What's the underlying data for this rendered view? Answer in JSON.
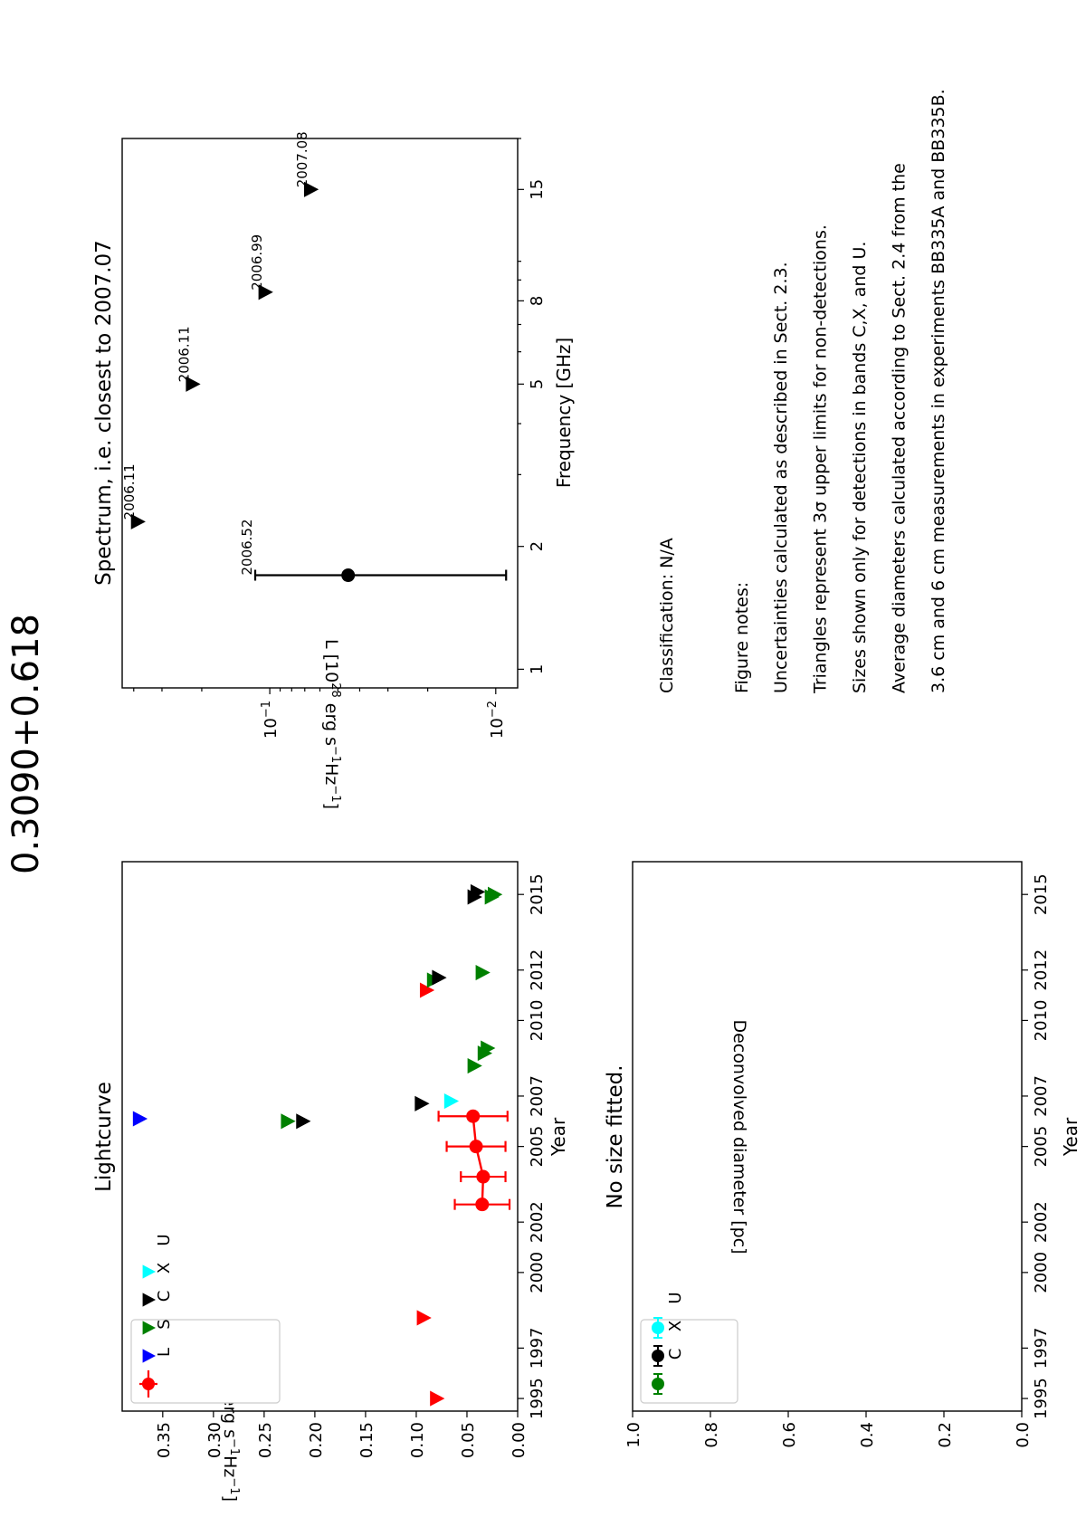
{
  "figure": {
    "title": "0.3090+0.618"
  },
  "colors": {
    "L": "#ff0000",
    "S": "#0000ff",
    "C": "#008000",
    "X": "#000000",
    "U": "#00ffff"
  },
  "chart_data": [
    {
      "id": "lightcurve",
      "type": "scatter",
      "title": "Lightcurve",
      "xlabel": "Year",
      "ylabel": "L [10^28 erg s^-1Hz^-1]",
      "xlim": [
        1994.5,
        2016.3
      ],
      "ylim": [
        0,
        0.39
      ],
      "x_ticks": [
        1995,
        1997,
        2000,
        2002,
        2005,
        2007,
        2010,
        2012,
        2015
      ],
      "y_ticks": [
        "0.00",
        "0.05",
        "0.10",
        "0.15",
        "0.20",
        "0.25",
        "0.30",
        "0.35"
      ],
      "legend": {
        "placement": "top-left",
        "entries": [
          "L",
          "S",
          "C",
          "X",
          "U"
        ]
      },
      "series": [
        {
          "name": "L",
          "kind": "detection",
          "points": [
            {
              "x": 2002.7,
              "y": 0.035,
              "err": 0.027
            },
            {
              "x": 2003.8,
              "y": 0.034,
              "err": 0.022
            },
            {
              "x": 2005.0,
              "y": 0.041,
              "err": 0.029
            },
            {
              "x": 2006.2,
              "y": 0.044,
              "err": 0.034
            }
          ]
        },
        {
          "name": "L",
          "kind": "upper-limit",
          "points": [
            {
              "x": 1995.0,
              "y": 0.08
            },
            {
              "x": 1998.2,
              "y": 0.093
            },
            {
              "x": 2011.2,
              "y": 0.09
            }
          ]
        },
        {
          "name": "S",
          "kind": "upper-limit",
          "points": [
            {
              "x": 2006.1,
              "y": 0.373
            }
          ]
        },
        {
          "name": "C",
          "kind": "upper-limit",
          "points": [
            {
              "x": 2006.0,
              "y": 0.227
            },
            {
              "x": 2008.2,
              "y": 0.043
            },
            {
              "x": 2008.7,
              "y": 0.033
            },
            {
              "x": 2008.9,
              "y": 0.03
            },
            {
              "x": 2011.6,
              "y": 0.083
            },
            {
              "x": 2011.9,
              "y": 0.035
            },
            {
              "x": 2014.9,
              "y": 0.026
            },
            {
              "x": 2015.0,
              "y": 0.023
            }
          ]
        },
        {
          "name": "X",
          "kind": "upper-limit",
          "points": [
            {
              "x": 2006.0,
              "y": 0.212
            },
            {
              "x": 2006.7,
              "y": 0.095
            },
            {
              "x": 2011.7,
              "y": 0.078
            },
            {
              "x": 2014.9,
              "y": 0.043
            },
            {
              "x": 2015.1,
              "y": 0.04
            }
          ]
        },
        {
          "name": "U",
          "kind": "upper-limit",
          "points": [
            {
              "x": 2006.8,
              "y": 0.066
            }
          ]
        }
      ]
    },
    {
      "id": "spectrum",
      "type": "scatter",
      "title": "Spectrum, i.e. closest to 2007.07",
      "xlabel": "Frequency [GHz]",
      "ylabel": "L [10^28 erg s^-1Hz^-1]",
      "xscale": "log",
      "yscale": "log",
      "xlim": [
        0.9,
        20
      ],
      "ylim": [
        0.008,
        0.45
      ],
      "x_ticks": [
        1,
        2,
        5,
        8,
        15
      ],
      "y_ticks": [
        0.1,
        0.01
      ],
      "y_tick_labels": [
        "10^-1",
        "10^-2"
      ],
      "points": [
        {
          "x": 1.7,
          "y": 0.045,
          "err_low": 0.036,
          "err_high": 0.071,
          "kind": "detection",
          "label": "2006.52"
        },
        {
          "x": 2.3,
          "y": 0.385,
          "kind": "upper-limit",
          "label": "2006.11"
        },
        {
          "x": 5.0,
          "y": 0.22,
          "kind": "upper-limit",
          "label": "2006.11"
        },
        {
          "x": 8.4,
          "y": 0.105,
          "kind": "upper-limit",
          "label": "2006.99"
        },
        {
          "x": 15.0,
          "y": 0.066,
          "kind": "upper-limit",
          "label": "2007.08"
        }
      ]
    },
    {
      "id": "sizes",
      "type": "scatter",
      "title": "No size fitted.",
      "xlabel": "Year",
      "ylabel": "Deconvolved diameter [pc]",
      "xlim": [
        1994.5,
        2016.3
      ],
      "ylim": [
        0,
        1.0
      ],
      "x_ticks": [
        1995,
        1997,
        2000,
        2002,
        2005,
        2007,
        2010,
        2012,
        2015
      ],
      "y_ticks": [
        "0.0",
        "0.2",
        "0.4",
        "0.6",
        "0.8",
        "1.0"
      ],
      "legend": {
        "placement": "top-left",
        "entries": [
          "C",
          "X",
          "U"
        ]
      },
      "series": []
    }
  ],
  "notes": {
    "classification": "Classification: N/A",
    "heading": "Figure notes:",
    "lines": [
      "Uncertainties calculated as described in Sect. 2.3.",
      "Triangles represent 3σ upper limits for non-detections.",
      "Sizes shown only for detections in bands C,X, and U.",
      "Average diameters calculated according to Sect. 2.4 from the",
      "3.6 cm and 6 cm measurements in experiments BB335A and BB335B."
    ]
  }
}
